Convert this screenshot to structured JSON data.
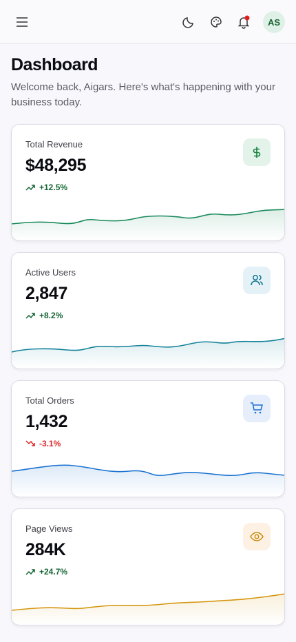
{
  "header": {
    "avatar": "AS"
  },
  "page": {
    "title": "Dashboard",
    "subtitle": "Welcome back, Aigars. Here's what's happening with your business today."
  },
  "cards": [
    {
      "label": "Total Revenue",
      "value": "$48,295",
      "change": "+12.5%"
    },
    {
      "label": "Active Users",
      "value": "2,847",
      "change": "+8.2%"
    },
    {
      "label": "Total Orders",
      "value": "1,432",
      "change": "-3.1%"
    },
    {
      "label": "Page Views",
      "value": "284K",
      "change": "+24.7%"
    }
  ]
}
